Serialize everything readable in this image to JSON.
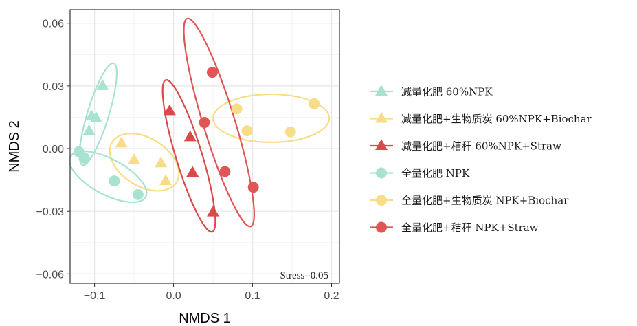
{
  "chart_data": {
    "type": "scatter",
    "xlabel": "NMDS 1",
    "ylabel": "NMDS 2",
    "xlim": [
      -0.131,
      0.21
    ],
    "ylim": [
      -0.0645,
      0.0665
    ],
    "x_ticks": [
      -0.1,
      0.0,
      0.1,
      0.2
    ],
    "x_tick_labels": [
      "−0.1",
      "0.0",
      "0.1",
      "0.2"
    ],
    "y_ticks": [
      -0.06,
      -0.03,
      0.0,
      0.03,
      0.06
    ],
    "y_tick_labels": [
      "−0.06",
      "−0.03",
      "0.00",
      "0.03",
      "0.06"
    ],
    "grid": true,
    "legend_position": "right",
    "annotation": "Stress=0.05",
    "series": [
      {
        "name": "减量化肥 60%NPK",
        "marker": "triangle",
        "color": "#a8e3d2",
        "points": [
          [
            -0.09,
            0.03
          ],
          [
            -0.104,
            0.0155
          ],
          [
            -0.098,
            0.0145
          ],
          [
            -0.107,
            0.0085
          ]
        ],
        "ellipse": {
          "center": [
            -0.0955,
            0.0165
          ],
          "rx": 0.0135,
          "ry": 0.0255,
          "rotation": 17
        }
      },
      {
        "name": "减量化肥+生物质炭 60%NPK+Biochar",
        "marker": "triangle",
        "color": "#f8dd88",
        "points": [
          [
            -0.066,
            0.0025
          ],
          [
            -0.05,
            -0.0055
          ],
          [
            -0.016,
            -0.007
          ],
          [
            -0.01,
            -0.0155
          ]
        ],
        "ellipse": {
          "center": [
            -0.037,
            -0.0065
          ],
          "rx": 0.048,
          "ry": 0.0115,
          "rotation": 32
        }
      },
      {
        "name": "减量化肥+秸秆 60%NPK+Straw",
        "marker": "triangle",
        "color": "#d94a4a",
        "points": [
          [
            -0.005,
            0.018
          ],
          [
            0.021,
            0.0055
          ],
          [
            0.024,
            -0.0115
          ],
          [
            0.05,
            -0.0305
          ]
        ],
        "ellipse": {
          "center": [
            0.0195,
            -0.0035
          ],
          "rx": 0.0165,
          "ry": 0.038,
          "rotation": -17
        }
      },
      {
        "name": "全量化肥 NPK",
        "marker": "circle",
        "color": "#a8e3d2",
        "points": [
          [
            -0.12,
            -0.0015
          ],
          [
            -0.113,
            -0.0045
          ],
          [
            -0.075,
            -0.0155
          ],
          [
            -0.045,
            -0.022
          ]
        ],
        "ellipse": {
          "center": [
            -0.083,
            -0.0135
          ],
          "rx": 0.054,
          "ry": 0.0085,
          "rotation": 28
        }
      },
      {
        "name": "全量化肥+生物质炭 NPK+Biochar",
        "marker": "circle",
        "color": "#f8dd88",
        "points": [
          [
            0.08,
            0.019
          ],
          [
            0.093,
            0.0085
          ],
          [
            0.148,
            0.008
          ],
          [
            0.178,
            0.0215
          ]
        ],
        "ellipse": {
          "center": [
            0.1235,
            0.0145
          ],
          "rx": 0.0735,
          "ry": 0.0115,
          "rotation": 0
        }
      },
      {
        "name": "全量化肥+秸秆 NPK+Straw",
        "marker": "circle",
        "color": "#e05555",
        "points": [
          [
            0.049,
            0.0365
          ],
          [
            0.039,
            0.0125
          ],
          [
            0.065,
            -0.011
          ],
          [
            0.101,
            -0.0185
          ]
        ],
        "ellipse": {
          "center": [
            0.0575,
            0.0125
          ],
          "rx": 0.02,
          "ry": 0.052,
          "rotation": -17
        }
      }
    ]
  }
}
